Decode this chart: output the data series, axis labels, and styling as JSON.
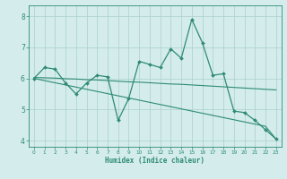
{
  "xlabel": "Humidex (Indice chaleur)",
  "x": [
    0,
    1,
    2,
    3,
    4,
    5,
    6,
    7,
    8,
    9,
    10,
    11,
    12,
    13,
    14,
    15,
    16,
    17,
    18,
    19,
    20,
    21,
    22,
    23
  ],
  "y_main": [
    6.0,
    6.35,
    6.3,
    5.85,
    5.5,
    5.85,
    6.1,
    6.05,
    4.65,
    5.35,
    6.55,
    6.45,
    6.35,
    6.95,
    6.65,
    7.9,
    7.15,
    6.1,
    6.15,
    4.95,
    4.9,
    4.65,
    4.35,
    4.05
  ],
  "y_line1": [
    6.03,
    6.02,
    6.01,
    5.99,
    5.98,
    5.96,
    5.95,
    5.93,
    5.91,
    5.89,
    5.88,
    5.86,
    5.84,
    5.82,
    5.81,
    5.79,
    5.77,
    5.75,
    5.73,
    5.71,
    5.69,
    5.67,
    5.65,
    5.63
  ],
  "y_line2": [
    6.0,
    5.93,
    5.86,
    5.79,
    5.72,
    5.65,
    5.58,
    5.51,
    5.44,
    5.37,
    5.3,
    5.23,
    5.16,
    5.09,
    5.02,
    4.95,
    4.88,
    4.81,
    4.74,
    4.67,
    4.6,
    4.53,
    4.46,
    4.05
  ],
  "line_color": "#2e8b75",
  "bg_color": "#d4ecec",
  "grid_color": "#aacfcf",
  "ylim": [
    3.8,
    8.35
  ],
  "xlim": [
    -0.5,
    23.5
  ],
  "yticks": [
    4,
    5,
    6,
    7,
    8
  ]
}
